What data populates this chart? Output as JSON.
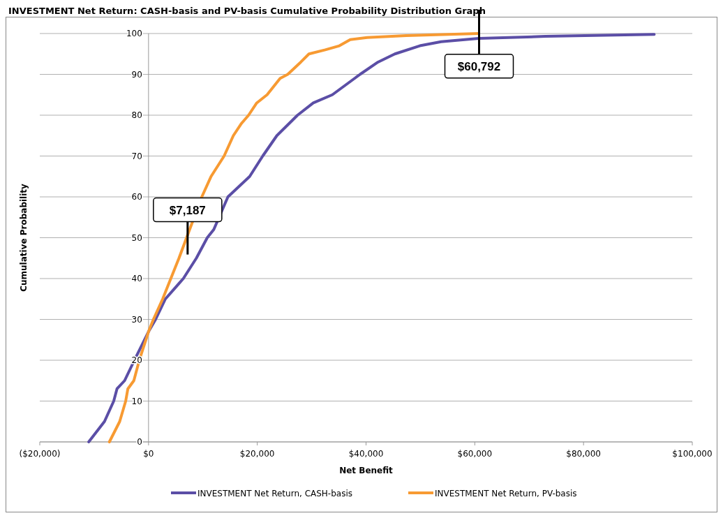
{
  "chart_data": {
    "type": "line",
    "title": "INVESTMENT Net Return: CASH-basis and PV-basis Cumulative Probability Distribution Graph",
    "xlabel": "Net Benefit",
    "ylabel": "Cumulative Probability",
    "xlim": [
      -20000,
      100000
    ],
    "xticks": [
      {
        "value": -20000,
        "label": "($20,000)"
      },
      {
        "value": 0,
        "label": "$0"
      },
      {
        "value": 20000,
        "label": "$20,000"
      },
      {
        "value": 40000,
        "label": "$40,000"
      },
      {
        "value": 60000,
        "label": "$60,000"
      },
      {
        "value": 80000,
        "label": "$80,000"
      },
      {
        "value": 100000,
        "label": "$100,000"
      }
    ],
    "ylim": [
      0,
      100
    ],
    "yticks": [
      0,
      10,
      20,
      30,
      40,
      50,
      60,
      70,
      80,
      90,
      100
    ],
    "grid": "y",
    "legend": "bottom",
    "marker": "none",
    "line_style": "solid",
    "series": [
      {
        "name": "INVESTMENT Net Return, CASH-basis",
        "color": "#5b4ea6",
        "x": [
          -11000,
          -8100,
          -6400,
          -5800,
          -4400,
          -2600,
          0,
          1300,
          3100,
          6400,
          8800,
          10800,
          12000,
          14600,
          18600,
          21000,
          23600,
          27400,
          30300,
          33800,
          38900,
          42200,
          45300,
          49900,
          53800,
          60700,
          73000,
          93000
        ],
        "values": [
          0,
          5,
          10,
          13,
          15,
          20,
          27,
          30,
          35,
          40,
          45,
          50,
          52,
          60,
          65,
          70,
          75,
          80,
          83,
          85,
          90,
          93,
          95,
          97,
          98,
          98.8,
          99.3,
          99.8
        ]
      },
      {
        "name": "INVESTMENT Net Return, PV-basis",
        "color": "#f79a32",
        "x": [
          -7200,
          -5300,
          -4200,
          -3800,
          -2700,
          -1700,
          0,
          900,
          2600,
          4100,
          5600,
          7000,
          9800,
          11500,
          13900,
          15600,
          17100,
          18400,
          19900,
          21800,
          24200,
          25600,
          28000,
          29500,
          32500,
          35100,
          37100,
          40200,
          47400,
          60700
        ],
        "values": [
          0,
          5,
          10,
          13,
          15,
          20,
          27,
          30,
          35,
          40,
          45,
          50,
          60,
          65,
          70,
          75,
          78,
          80,
          83,
          85,
          89,
          90,
          93,
          95,
          96,
          97,
          98.5,
          99,
          99.5,
          100
        ]
      }
    ],
    "annotations": [
      {
        "text": "$7,187",
        "x": 7187,
        "y": 50.5
      },
      {
        "text": "$60,792",
        "x": 60792,
        "y": 99
      }
    ]
  }
}
